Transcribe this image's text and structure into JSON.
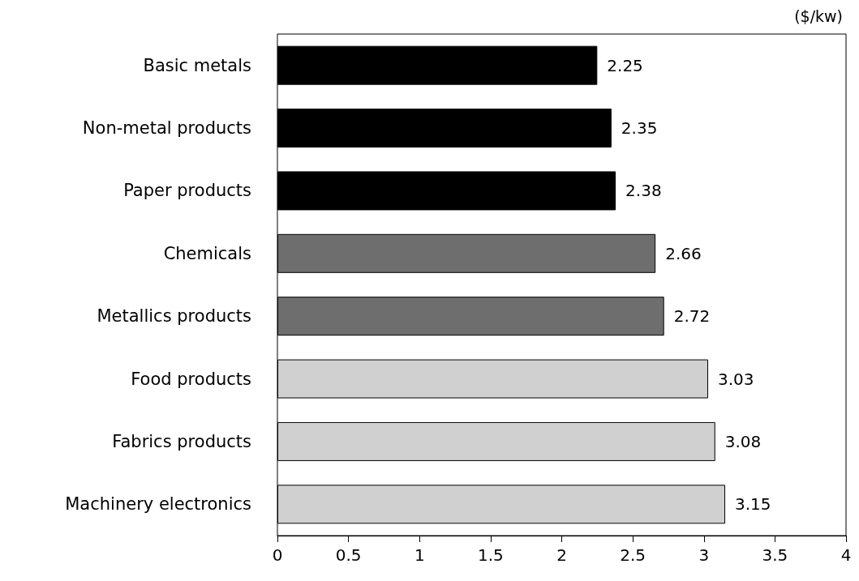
{
  "chart_data": {
    "type": "bar",
    "orientation": "horizontal",
    "categories": [
      "Basic metals",
      "Non-metal products",
      "Paper products",
      "Chemicals",
      "Metallics products",
      "Food products",
      "Fabrics products",
      "Machinery electronics"
    ],
    "values": [
      2.25,
      2.35,
      2.38,
      2.66,
      2.72,
      3.03,
      3.08,
      3.15
    ],
    "colors": [
      "#000000",
      "#000000",
      "#000000",
      "#6e6e6e",
      "#6e6e6e",
      "#d0d0d0",
      "#d0d0d0",
      "#d0d0d0"
    ],
    "xlim": [
      0,
      4
    ],
    "xticks": [
      0,
      0.5,
      1,
      1.5,
      2,
      2.5,
      3,
      3.5,
      4
    ],
    "data_labels": true,
    "annotations": [
      "($/kw)"
    ]
  }
}
